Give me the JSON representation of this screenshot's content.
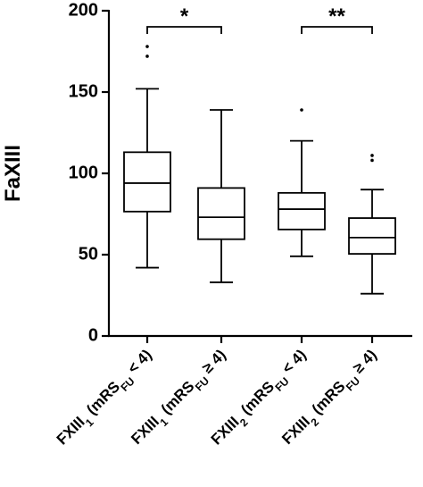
{
  "chart_data": {
    "type": "box",
    "y_label": "FaXIII",
    "ylim": [
      0,
      200
    ],
    "yticks": [
      0,
      50,
      100,
      150,
      200
    ],
    "categories": [
      {
        "parts": [
          {
            "text": "FXIII"
          },
          {
            "text": "1",
            "sub": true
          },
          {
            "text": " (mRS"
          },
          {
            "text": "FU",
            "sub": true
          },
          {
            "text": " < 4)"
          }
        ]
      },
      {
        "parts": [
          {
            "text": "FXIII"
          },
          {
            "text": "1",
            "sub": true
          },
          {
            "text": " (mRS"
          },
          {
            "text": "FU",
            "sub": true
          },
          {
            "text": " ≥ 4)"
          }
        ]
      },
      {
        "parts": [
          {
            "text": "FXIII"
          },
          {
            "text": "2",
            "sub": true
          },
          {
            "text": " (mRS"
          },
          {
            "text": "FU",
            "sub": true
          },
          {
            "text": " < 4)"
          }
        ]
      },
      {
        "parts": [
          {
            "text": "FXIII"
          },
          {
            "text": "2",
            "sub": true
          },
          {
            "text": " (mRS"
          },
          {
            "text": "FU",
            "sub": true
          },
          {
            "text": " ≥ 4)"
          }
        ]
      }
    ],
    "boxes": [
      {
        "whisker_low": 42,
        "q1": 76.5,
        "median": 94,
        "q3": 113,
        "whisker_high": 152,
        "outliers": [
          172,
          178
        ]
      },
      {
        "whisker_low": 33,
        "q1": 59.5,
        "median": 73,
        "q3": 91,
        "whisker_high": 139,
        "outliers": []
      },
      {
        "whisker_low": 49,
        "q1": 65.5,
        "median": 78,
        "q3": 88,
        "whisker_high": 120,
        "outliers": [
          139
        ]
      },
      {
        "whisker_low": 26,
        "q1": 50.5,
        "median": 60.5,
        "q3": 72.5,
        "whisker_high": 90,
        "outliers": [
          108,
          111
        ]
      }
    ],
    "color": "#000000",
    "annotations": [
      {
        "text": "*",
        "between": [
          0,
          1
        ]
      },
      {
        "text": "**",
        "between": [
          2,
          3
        ]
      }
    ]
  }
}
